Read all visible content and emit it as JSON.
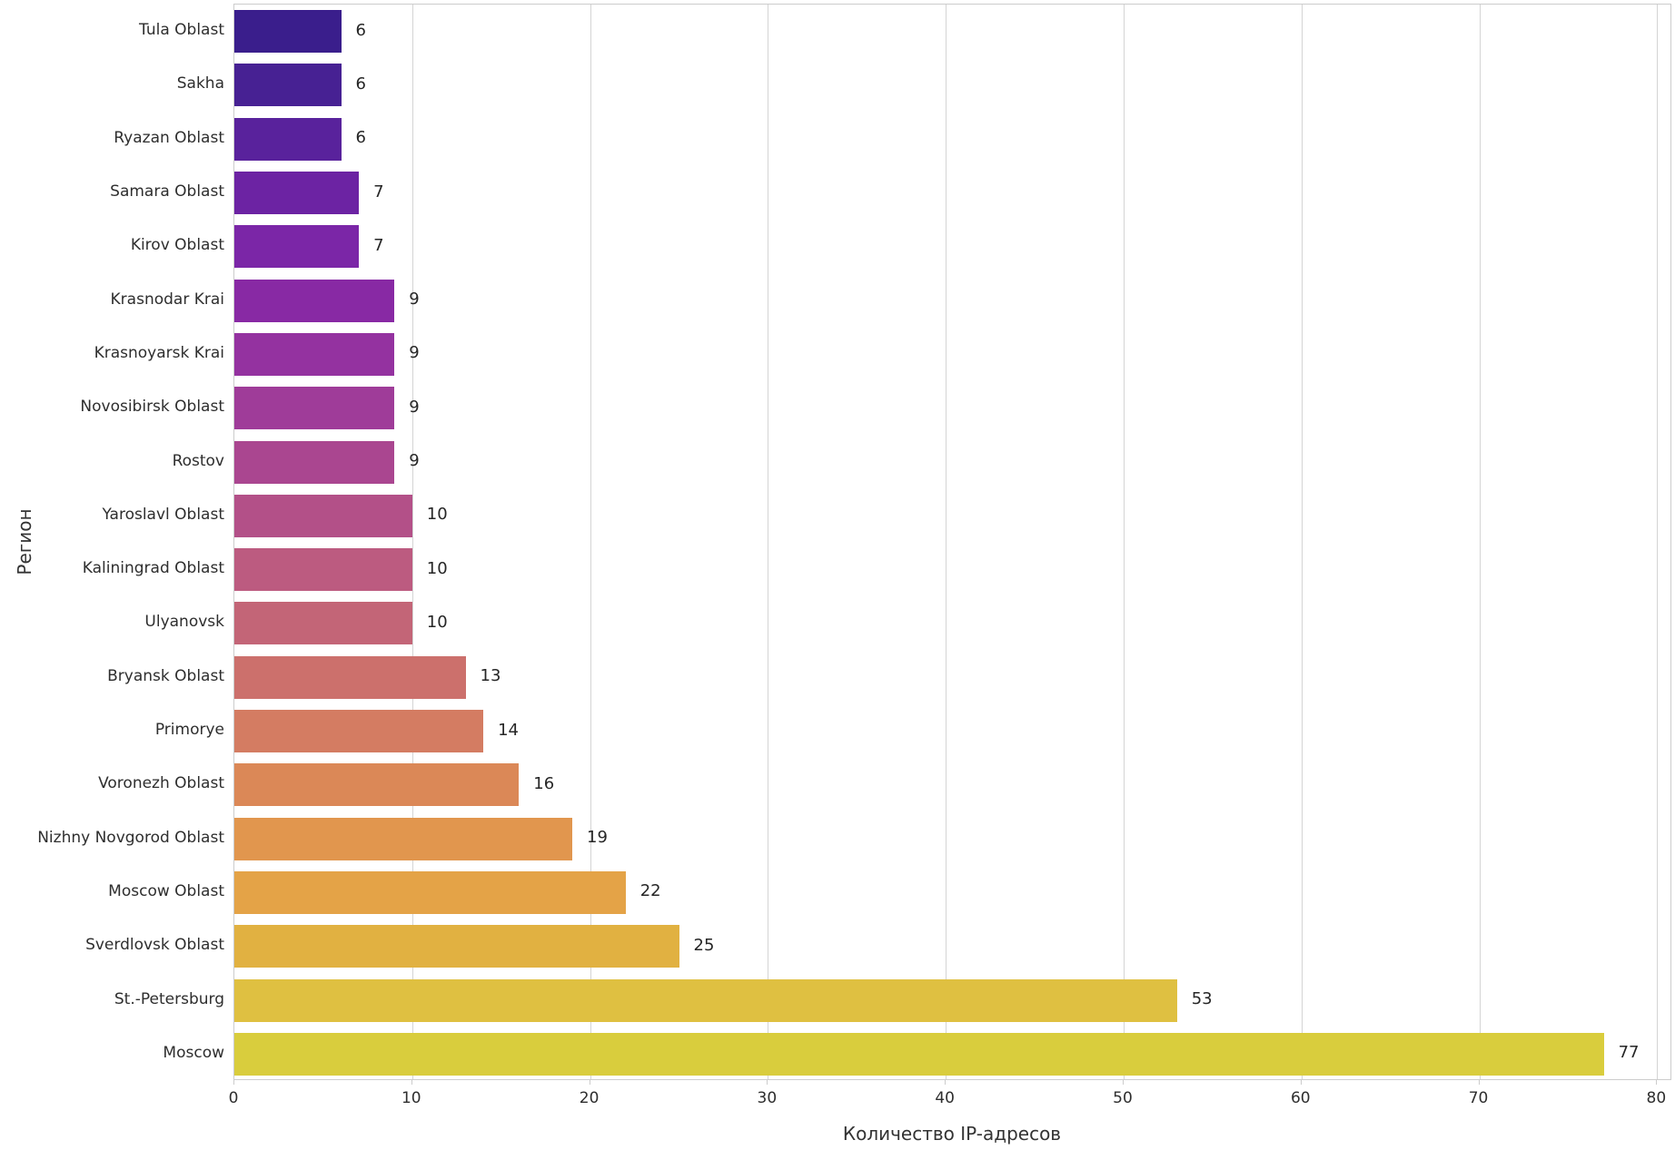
{
  "chart_data": {
    "type": "bar",
    "orientation": "horizontal",
    "title": "",
    "xlabel": "Количество IP-адресов",
    "ylabel": "Регион",
    "categories": [
      "Tula Oblast",
      "Sakha",
      "Ryazan Oblast",
      "Samara Oblast",
      "Kirov Oblast",
      "Krasnodar Krai",
      "Krasnoyarsk Krai",
      "Novosibirsk Oblast",
      "Rostov",
      "Yaroslavl Oblast",
      "Kaliningrad Oblast",
      "Ulyanovsk",
      "Bryansk Oblast",
      "Primorye",
      "Voronezh Oblast",
      "Nizhny Novgorod Oblast",
      "Moscow Oblast",
      "Sverdlovsk Oblast",
      "St.-Petersburg",
      "Moscow"
    ],
    "values": [
      6,
      6,
      6,
      7,
      7,
      9,
      9,
      9,
      9,
      10,
      10,
      10,
      13,
      14,
      16,
      19,
      22,
      25,
      53,
      77
    ],
    "value_labels": [
      "6",
      "6",
      "6",
      "7",
      "7",
      "9",
      "9",
      "9",
      "9",
      "10",
      "10",
      "10",
      "13",
      "14",
      "16",
      "19",
      "22",
      "25",
      "53",
      "77"
    ],
    "bar_colors": [
      "#3a1e8c",
      "#472193",
      "#59229c",
      "#6c23a3",
      "#7b26a7",
      "#8829a4",
      "#9432a0",
      "#9f3c99",
      "#aa4690",
      "#b35088",
      "#bc5b80",
      "#c36577",
      "#cc706c",
      "#d47c62",
      "#db8857",
      "#e1964e",
      "#e4a347",
      "#e1b141",
      "#dfc041",
      "#d9cd3d"
    ],
    "xlim": [
      0,
      80.85
    ],
    "xticks": [
      0,
      10,
      20,
      30,
      40,
      50,
      60,
      70,
      80
    ],
    "xtick_labels": [
      "0",
      "10",
      "20",
      "30",
      "40",
      "50",
      "60",
      "70",
      "80"
    ],
    "grid": "vertical",
    "legend": "none",
    "colors": {
      "grid_color": "#d4d4d4",
      "spine_color": "#cccccc",
      "text_color": "#2e2e2e",
      "background": "#ffffff"
    }
  }
}
